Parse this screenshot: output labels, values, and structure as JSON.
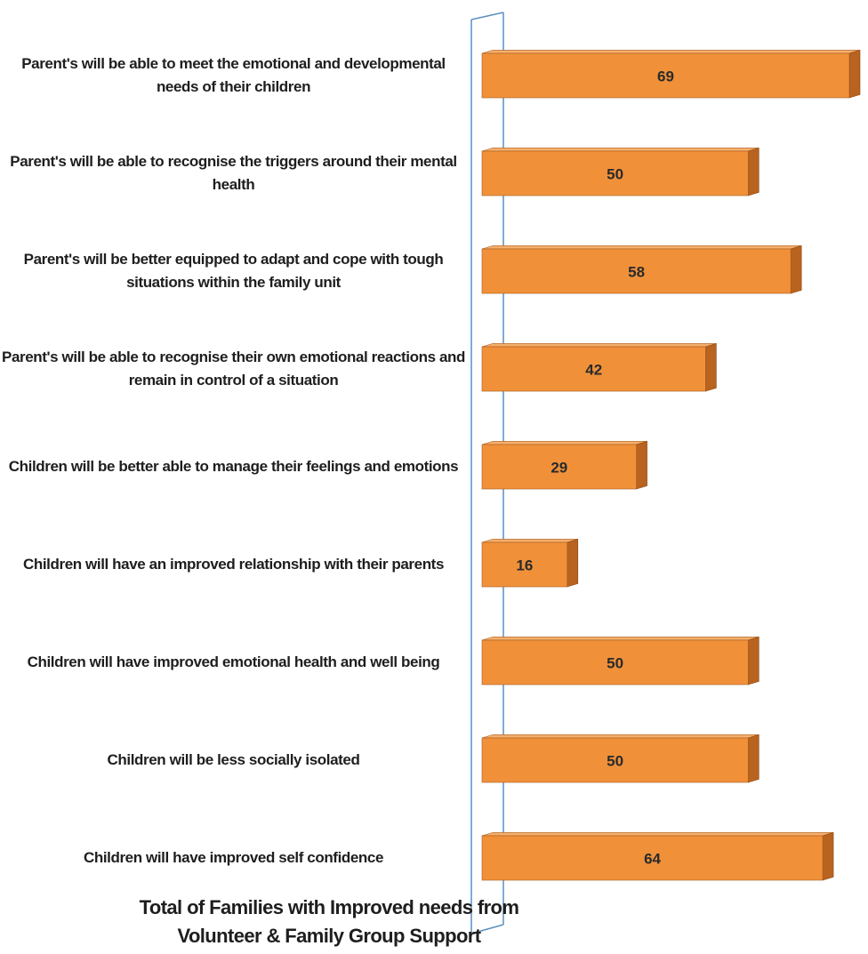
{
  "chart_data": {
    "type": "bar",
    "orientation": "horizontal",
    "title": "Total of Families with Improved needs from Volunteer & Family Group Support",
    "categories": [
      "Parent's will be able to meet the emotional and developmental needs of their children",
      "Parent's will be able to recognise the triggers around their mental health",
      "Parent's will be better equipped to adapt and cope with tough situations within the family unit",
      "Parent's will be able to recognise their own emotional reactions and remain in control of a situation",
      "Children will be better able to manage their feelings and emotions",
      "Children will have an improved relationship with their parents",
      "Children will have improved emotional health and well being",
      "Children will be less socially isolated",
      "Children will have improved self confidence"
    ],
    "values": [
      69,
      50,
      58,
      42,
      29,
      16,
      50,
      50,
      64
    ],
    "color": "#f0913a"
  }
}
